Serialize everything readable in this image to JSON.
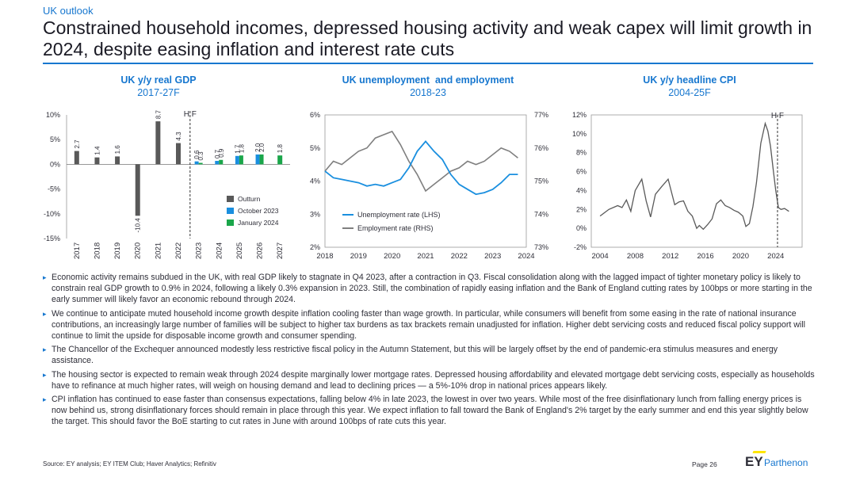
{
  "header": {
    "section": "UK outlook",
    "title": "Constrained household incomes, depressed housing activity and weak capex will limit growth in 2024, despite easing inflation and interest rate cuts"
  },
  "colors": {
    "accent": "#1777cf",
    "outturn": "#595959",
    "october": "#1a8fdf",
    "january": "#1aa64a",
    "employment": "#7f7f7f",
    "brand_yellow": "#ffe600"
  },
  "chart_data": [
    {
      "type": "bar",
      "title": "UK y/y real GDP",
      "subtitle": "2017-27F",
      "categories": [
        "2017",
        "2018",
        "2019",
        "2020",
        "2021",
        "2022",
        "2023",
        "2024",
        "2025",
        "2026",
        "2027"
      ],
      "series": [
        {
          "name": "Outturn",
          "values": [
            2.7,
            1.4,
            1.6,
            -10.4,
            8.7,
            4.3,
            null,
            null,
            null,
            null,
            null
          ],
          "labels": [
            "2.7",
            "1.4",
            "1.6",
            "-10.4",
            "8.7",
            "4.3",
            "",
            "",
            "",
            "",
            ""
          ]
        },
        {
          "name": "October 2023",
          "values": [
            null,
            null,
            null,
            null,
            null,
            null,
            0.6,
            0.7,
            1.7,
            2.0,
            null
          ],
          "labels": [
            "",
            "",
            "",
            "",
            "",
            "",
            "0.6",
            "0.7",
            "1.7",
            "2.0",
            ""
          ]
        },
        {
          "name": "January 2024",
          "values": [
            null,
            null,
            null,
            null,
            null,
            null,
            0.3,
            0.9,
            1.8,
            2.0,
            1.8
          ],
          "labels": [
            "",
            "",
            "",
            "",
            "",
            "",
            "0.3",
            "0.9",
            "1.8",
            "2.0",
            "1.8"
          ]
        }
      ],
      "ylim": [
        -15,
        10
      ],
      "yticks": [
        "10%",
        "5%",
        "0%",
        "-5%",
        "-10%",
        "-15%"
      ],
      "annotation": "H F"
    },
    {
      "type": "line",
      "title": "UK unemployment  and employment",
      "subtitle": "2018-23",
      "x_ticks": [
        "2018",
        "2019",
        "2020",
        "2021",
        "2022",
        "2023",
        "2024"
      ],
      "y_left_ticks": [
        "6%",
        "5%",
        "4%",
        "3%",
        "2%"
      ],
      "y_right_ticks": [
        "77%",
        "76%",
        "75%",
        "74%",
        "73%"
      ],
      "ylim_left": [
        2,
        6
      ],
      "ylim_right": [
        73,
        77
      ],
      "series": [
        {
          "name": "Unemployment rate (LHS)",
          "axis": "left",
          "x": [
            2018.0,
            2018.25,
            2018.5,
            2018.75,
            2019.0,
            2019.25,
            2019.5,
            2019.75,
            2020.0,
            2020.25,
            2020.5,
            2020.75,
            2021.0,
            2021.25,
            2021.5,
            2021.75,
            2022.0,
            2022.25,
            2022.5,
            2022.75,
            2023.0,
            2023.25,
            2023.5,
            2023.75
          ],
          "y": [
            4.3,
            4.1,
            4.05,
            4.0,
            3.95,
            3.85,
            3.9,
            3.85,
            3.95,
            4.05,
            4.4,
            4.9,
            5.2,
            4.9,
            4.65,
            4.2,
            3.9,
            3.75,
            3.6,
            3.65,
            3.75,
            3.95,
            4.2,
            4.2
          ]
        },
        {
          "name": "Employment rate (RHS)",
          "axis": "right",
          "x": [
            2018.0,
            2018.25,
            2018.5,
            2018.75,
            2019.0,
            2019.25,
            2019.5,
            2019.75,
            2020.0,
            2020.25,
            2020.5,
            2020.75,
            2021.0,
            2021.25,
            2021.5,
            2021.75,
            2022.0,
            2022.25,
            2022.5,
            2022.75,
            2023.0,
            2023.25,
            2023.5,
            2023.75
          ],
          "y": [
            75.3,
            75.6,
            75.5,
            75.7,
            75.9,
            76.0,
            76.3,
            76.4,
            76.5,
            76.1,
            75.6,
            75.2,
            74.7,
            74.9,
            75.1,
            75.3,
            75.4,
            75.6,
            75.5,
            75.6,
            75.8,
            76.0,
            75.9,
            75.7
          ]
        }
      ]
    },
    {
      "type": "line",
      "title": "UK y/y headline CPI",
      "subtitle": "2004-25F",
      "x_ticks": [
        "2004",
        "2008",
        "2012",
        "2016",
        "2020",
        "2024"
      ],
      "yticks": [
        "12%",
        "10%",
        "8%",
        "6%",
        "4%",
        "2%",
        "0%",
        "-2%"
      ],
      "ylim": [
        -2,
        12
      ],
      "annotation": "H F",
      "series": [
        {
          "name": "CPI",
          "x": [
            2004,
            2005,
            2006,
            2006.5,
            2007,
            2007.5,
            2008,
            2008.75,
            2009.25,
            2009.75,
            2010.3,
            2011,
            2011.75,
            2012.5,
            2013,
            2013.5,
            2014,
            2014.5,
            2015,
            2015.3,
            2015.75,
            2016.25,
            2016.75,
            2017.25,
            2017.75,
            2018.25,
            2018.75,
            2019.25,
            2019.75,
            2020.25,
            2020.6,
            2021,
            2021.4,
            2021.8,
            2022.3,
            2022.8,
            2023.1,
            2023.4,
            2023.7,
            2024.0,
            2024.3,
            2024.6,
            2025.0,
            2025.5
          ],
          "y": [
            1.3,
            2.0,
            2.4,
            2.2,
            3.0,
            1.8,
            4.0,
            5.2,
            2.9,
            1.2,
            3.6,
            4.4,
            5.2,
            2.5,
            2.8,
            2.9,
            1.8,
            1.3,
            0.0,
            0.3,
            -0.1,
            0.4,
            1.0,
            2.6,
            3.0,
            2.4,
            2.2,
            1.9,
            1.7,
            1.3,
            0.2,
            0.5,
            2.3,
            4.8,
            9.0,
            11.1,
            10.3,
            8.7,
            6.3,
            4.0,
            2.2,
            2.0,
            2.1,
            1.8
          ]
        }
      ]
    }
  ],
  "legends": {
    "gdp": [
      "Outturn",
      "October 2023",
      "January 2024"
    ],
    "labour": [
      "Unemployment rate (LHS)",
      "Employment rate (RHS)"
    ]
  },
  "bullets": [
    "Economic activity remains subdued in the UK, with real GDP likely to stagnate in Q4 2023, after a contraction in Q3. Fiscal consolidation along with the lagged impact of tighter monetary policy is likely to constrain real GDP growth to 0.9% in 2024, following a likely 0.3% expansion in 2023. Still, the combination of rapidly easing inflation and the Bank of England cutting rates by 100bps or more starting in the early summer will likely favor an economic rebound through 2024.",
    "We continue to anticipate muted household income growth despite inflation cooling faster than wage growth. In particular, while consumers will benefit from some easing in the rate of national insurance contributions, an increasingly large number of families will be subject to higher tax burdens as tax brackets remain unadjusted for inflation. Higher debt servicing costs and reduced fiscal policy support will continue to limit the upside for disposable income growth and consumer spending.",
    "The Chancellor of the Exchequer announced modestly less restrictive fiscal policy in the Autumn Statement, but this will be largely offset by the end of pandemic-era stimulus measures and energy assistance.",
    "The housing sector is expected to remain weak through 2024 despite marginally lower mortgage rates. Depressed housing affordability and elevated mortgage debt servicing costs, especially as households have to refinance at much higher rates, will weigh on housing demand and lead to declining prices — a 5%-10% drop in national prices appears likely.",
    "CPI inflation has continued to ease faster than consensus expectations, falling below 4% in late 2023, the lowest in over two years. While most of the free disinflationary lunch from falling energy prices is now behind us, strong disinflationary forces should remain in place through this year. We expect inflation to fall toward the Bank of England's 2% target by the early summer and end this year slightly below the target. This should favor the BoE starting to cut rates in June with around 100bps of rate cuts this year."
  ],
  "footer": {
    "source": "Source: EY analysis; EY ITEM Club; Haver Analytics; Refinitiv",
    "page": "Page 26",
    "logo_ey": "EY",
    "logo_parthenon": "Parthenon"
  }
}
